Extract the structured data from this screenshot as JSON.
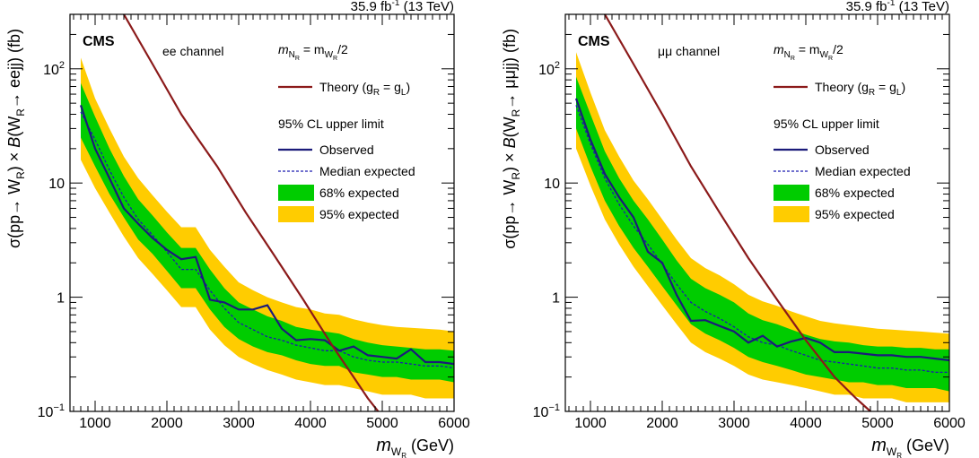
{
  "chart_data": [
    {
      "type": "line",
      "cms_label": "CMS",
      "channel": "ee channel",
      "lumi": "35.9 fb",
      "lumi_sup": "-1",
      "lumi_energy": "(13 TeV)",
      "mass_relation": {
        "lhs": "m",
        "lhs_sub": "N",
        "lhs_subsub": "R",
        "eq": "= m",
        "rhs_sub": "W",
        "rhs_subsub": "R",
        "suffix": "/2"
      },
      "ylabel": {
        "pre": "σ(pp→ W",
        "sub1": "R",
        "mid": ") × ",
        "b": "B",
        "post": "(W",
        "sub2": "R",
        "end": "→ eejj) (fb)"
      },
      "xlabel": {
        "m": "m",
        "sub": "W",
        "subsub": "R",
        "unit": "(GeV)"
      },
      "xlim": [
        650,
        6000
      ],
      "ylim": [
        0.1,
        300
      ],
      "y_scale": "log",
      "x_ticks": [
        1000,
        2000,
        3000,
        4000,
        5000,
        6000
      ],
      "x_tick_labels": [
        "1000",
        "2000",
        "3000",
        "4000",
        "5000",
        "6000"
      ],
      "y_tick_labels": [
        {
          "v": 0.1,
          "base": "10",
          "exp": "−1"
        },
        {
          "v": 1,
          "base": "1",
          "exp": ""
        },
        {
          "v": 10,
          "base": "10",
          "exp": ""
        },
        {
          "v": 100,
          "base": "10",
          "exp": "2"
        }
      ],
      "legend": {
        "theory": "Theory (g",
        "theory_sub1": "R",
        "theory_mid": " = g",
        "theory_sub2": "L",
        "theory_end": ")",
        "header": "95% CL upper limit",
        "observed": "Observed",
        "expected": "Median expected",
        "band68": "68% expected",
        "band95": "95% expected"
      },
      "colors": {
        "theory": "#8b1a1a",
        "observed": "#1b1b7a",
        "expected": "#1b1bb0",
        "band68": "#00cc00",
        "band95": "#ffcc00"
      },
      "theory": {
        "x": [
          1400,
          1800,
          2200,
          2400,
          2700,
          3100,
          3500,
          3900,
          4300,
          4600,
          4800,
          5000
        ],
        "y": [
          300,
          110,
          40,
          26,
          14,
          5.5,
          2.3,
          0.95,
          0.38,
          0.2,
          0.13,
          0.09
        ]
      },
      "observed": {
        "x": [
          800,
          1000,
          1200,
          1400,
          1600,
          1800,
          2000,
          2200,
          2400,
          2600,
          2800,
          3000,
          3200,
          3400,
          3600,
          3800,
          4000,
          4200,
          4400,
          4600,
          4800,
          5000,
          5200,
          5400,
          5600,
          5800,
          6000
        ],
        "y": [
          48,
          20,
          11,
          6,
          4.4,
          3.3,
          2.6,
          2.15,
          2.25,
          0.95,
          0.9,
          0.78,
          0.78,
          0.85,
          0.53,
          0.42,
          0.43,
          0.42,
          0.34,
          0.37,
          0.31,
          0.3,
          0.29,
          0.35,
          0.27,
          0.27,
          0.26
        ]
      },
      "expected": {
        "x": [
          800,
          1000,
          1200,
          1400,
          1600,
          1800,
          2000,
          2200,
          2400,
          2600,
          2800,
          3000,
          3200,
          3400,
          3600,
          3800,
          4000,
          4200,
          4400,
          4600,
          4800,
          5000,
          5200,
          5400,
          5600,
          5800,
          6000
        ],
        "y": [
          42,
          24,
          13,
          7.5,
          4.8,
          3.5,
          2.5,
          1.75,
          1.75,
          1.15,
          0.8,
          0.6,
          0.52,
          0.45,
          0.42,
          0.38,
          0.36,
          0.34,
          0.34,
          0.3,
          0.28,
          0.27,
          0.27,
          0.26,
          0.25,
          0.25,
          0.24
        ]
      },
      "band68": {
        "x": [
          800,
          1000,
          1200,
          1400,
          1600,
          1800,
          2000,
          2200,
          2400,
          2600,
          2800,
          3000,
          3200,
          3400,
          3600,
          3800,
          4000,
          4200,
          4400,
          4600,
          4800,
          5000,
          5200,
          5400,
          5600,
          5800,
          6000
        ],
        "lo": [
          25,
          14,
          8,
          5,
          3.2,
          2.4,
          1.7,
          1.2,
          1.2,
          0.78,
          0.55,
          0.43,
          0.37,
          0.33,
          0.31,
          0.28,
          0.26,
          0.25,
          0.25,
          0.22,
          0.21,
          0.2,
          0.2,
          0.19,
          0.19,
          0.19,
          0.18
        ],
        "hi": [
          75,
          38,
          20,
          11.5,
          7.2,
          5.2,
          3.7,
          2.7,
          2.7,
          1.75,
          1.2,
          0.9,
          0.78,
          0.68,
          0.62,
          0.55,
          0.52,
          0.5,
          0.48,
          0.43,
          0.4,
          0.38,
          0.37,
          0.36,
          0.35,
          0.35,
          0.34
        ]
      },
      "band95": {
        "x": [
          800,
          1000,
          1200,
          1400,
          1600,
          1800,
          2000,
          2200,
          2400,
          2600,
          2800,
          3000,
          3200,
          3400,
          3600,
          3800,
          4000,
          4200,
          4400,
          4600,
          4800,
          5000,
          5200,
          5400,
          5600,
          5800,
          6000
        ],
        "lo": [
          16,
          9,
          5.5,
          3.4,
          2.2,
          1.6,
          1.15,
          0.82,
          0.82,
          0.52,
          0.38,
          0.3,
          0.26,
          0.23,
          0.21,
          0.19,
          0.18,
          0.17,
          0.17,
          0.16,
          0.15,
          0.14,
          0.14,
          0.14,
          0.13,
          0.13,
          0.13
        ],
        "hi": [
          125,
          55,
          30,
          17,
          11,
          7.8,
          5.6,
          4.1,
          4.1,
          2.6,
          1.85,
          1.35,
          1.15,
          1.0,
          0.9,
          0.82,
          0.78,
          0.72,
          0.7,
          0.64,
          0.6,
          0.57,
          0.55,
          0.54,
          0.53,
          0.52,
          0.5
        ]
      }
    },
    {
      "type": "line",
      "cms_label": "CMS",
      "channel": "μμ channel",
      "lumi": "35.9 fb",
      "lumi_sup": "-1",
      "lumi_energy": "(13 TeV)",
      "mass_relation": {
        "lhs": "m",
        "lhs_sub": "N",
        "lhs_subsub": "R",
        "eq": "= m",
        "rhs_sub": "W",
        "rhs_subsub": "R",
        "suffix": "/2"
      },
      "ylabel": {
        "pre": "σ(pp→ W",
        "sub1": "R",
        "mid": ") × ",
        "b": "B",
        "post": "(W",
        "sub2": "R",
        "end": "→ μμjj) (fb)"
      },
      "xlabel": {
        "m": "m",
        "sub": "W",
        "subsub": "R",
        "unit": "(GeV)"
      },
      "xlim": [
        650,
        6000
      ],
      "ylim": [
        0.1,
        300
      ],
      "y_scale": "log",
      "x_ticks": [
        1000,
        2000,
        3000,
        4000,
        5000,
        6000
      ],
      "x_tick_labels": [
        "1000",
        "2000",
        "3000",
        "4000",
        "5000",
        "6000"
      ],
      "y_tick_labels": [
        {
          "v": 0.1,
          "base": "10",
          "exp": "−1"
        },
        {
          "v": 1,
          "base": "1",
          "exp": ""
        },
        {
          "v": 10,
          "base": "10",
          "exp": ""
        },
        {
          "v": 100,
          "base": "10",
          "exp": "2"
        }
      ],
      "legend": {
        "theory": "Theory (g",
        "theory_sub1": "R",
        "theory_mid": " = g",
        "theory_sub2": "L",
        "theory_end": ")",
        "header": "95% CL upper limit",
        "observed": "Observed",
        "expected": "Median expected",
        "band68": "68% expected",
        "band95": "95% expected"
      },
      "colors": {
        "theory": "#8b1a1a",
        "observed": "#1b1b7a",
        "expected": "#1b1bb0",
        "band68": "#00cc00",
        "band95": "#ffcc00"
      },
      "theory": {
        "x": [
          1200,
          1600,
          2000,
          2400,
          2800,
          3200,
          3600,
          4000,
          4400,
          4700,
          4900,
          5000
        ],
        "y": [
          300,
          110,
          40,
          14,
          5.5,
          2.2,
          0.95,
          0.42,
          0.2,
          0.13,
          0.1,
          0.09
        ]
      },
      "observed": {
        "x": [
          800,
          1000,
          1200,
          1400,
          1600,
          1800,
          2000,
          2200,
          2400,
          2600,
          2800,
          3000,
          3200,
          3400,
          3600,
          3800,
          4000,
          4200,
          4400,
          4600,
          4800,
          5000,
          5200,
          5400,
          5600,
          5800,
          6000
        ],
        "y": [
          55,
          24,
          12,
          7.5,
          5,
          2.5,
          2,
          1.05,
          0.62,
          0.63,
          0.56,
          0.5,
          0.4,
          0.46,
          0.37,
          0.41,
          0.44,
          0.4,
          0.33,
          0.33,
          0.32,
          0.31,
          0.31,
          0.3,
          0.3,
          0.29,
          0.28
        ]
      },
      "expected": {
        "x": [
          800,
          1000,
          1200,
          1400,
          1600,
          1800,
          2000,
          2200,
          2400,
          2600,
          2800,
          3000,
          3200,
          3400,
          3600,
          3800,
          4000,
          4200,
          4400,
          4600,
          4800,
          5000,
          5200,
          5400,
          5600,
          5800,
          6000
        ],
        "y": [
          48,
          22,
          11,
          6.5,
          4.2,
          2.9,
          1.95,
          1.3,
          0.9,
          0.75,
          0.65,
          0.55,
          0.45,
          0.4,
          0.38,
          0.34,
          0.31,
          0.28,
          0.27,
          0.26,
          0.25,
          0.24,
          0.24,
          0.23,
          0.23,
          0.22,
          0.22
        ]
      },
      "band68": {
        "x": [
          800,
          1000,
          1200,
          1400,
          1600,
          1800,
          2000,
          2200,
          2400,
          2600,
          2800,
          3000,
          3200,
          3400,
          3600,
          3800,
          4000,
          4200,
          4400,
          4600,
          4800,
          5000,
          5200,
          5400,
          5600,
          5800,
          6000
        ],
        "lo": [
          30,
          14,
          7,
          4.2,
          2.7,
          1.85,
          1.25,
          0.85,
          0.58,
          0.48,
          0.42,
          0.36,
          0.3,
          0.27,
          0.25,
          0.23,
          0.21,
          0.2,
          0.19,
          0.18,
          0.18,
          0.17,
          0.17,
          0.16,
          0.16,
          0.16,
          0.15
        ],
        "hi": [
          85,
          40,
          19,
          11,
          7,
          4.8,
          3.2,
          2.1,
          1.45,
          1.2,
          1.05,
          0.9,
          0.72,
          0.63,
          0.58,
          0.52,
          0.47,
          0.43,
          0.41,
          0.4,
          0.38,
          0.37,
          0.37,
          0.36,
          0.36,
          0.35,
          0.35
        ]
      },
      "band95": {
        "x": [
          800,
          1000,
          1200,
          1400,
          1600,
          1800,
          2000,
          2200,
          2400,
          2600,
          2800,
          3000,
          3200,
          3400,
          3600,
          3800,
          4000,
          4200,
          4400,
          4600,
          4800,
          5000,
          5200,
          5400,
          5600,
          5800,
          6000
        ],
        "lo": [
          20,
          9.5,
          4.8,
          2.9,
          1.85,
          1.25,
          0.85,
          0.58,
          0.4,
          0.33,
          0.29,
          0.25,
          0.21,
          0.19,
          0.18,
          0.17,
          0.16,
          0.15,
          0.14,
          0.14,
          0.13,
          0.13,
          0.13,
          0.12,
          0.12,
          0.12,
          0.12
        ],
        "hi": [
          140,
          62,
          29,
          17,
          10.5,
          7.2,
          4.8,
          3.2,
          2.2,
          1.8,
          1.55,
          1.3,
          1.05,
          0.92,
          0.84,
          0.75,
          0.68,
          0.62,
          0.59,
          0.57,
          0.55,
          0.53,
          0.52,
          0.51,
          0.5,
          0.49,
          0.48
        ]
      }
    }
  ]
}
